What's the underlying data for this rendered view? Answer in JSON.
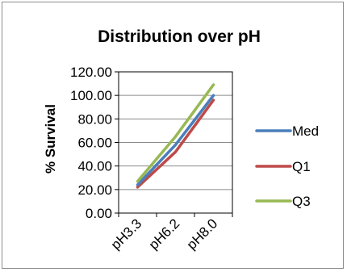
{
  "chart_data": {
    "type": "line",
    "title": "Distribution over pH",
    "xlabel": "",
    "ylabel": "% Survival",
    "categories": [
      "pH3.3",
      "pH6.2",
      "pH8.0"
    ],
    "ylim": [
      0,
      120
    ],
    "yticks": [
      "0.00",
      "20.00",
      "40.00",
      "60.00",
      "80.00",
      "100.00",
      "120.00"
    ],
    "grid": true,
    "legend_position": "right",
    "series": [
      {
        "name": "Med",
        "values": [
          24,
          58,
          100
        ],
        "color": "#4a7ebb"
      },
      {
        "name": "Q1",
        "values": [
          22,
          52,
          96
        ],
        "color": "#be4b48"
      },
      {
        "name": "Q3",
        "values": [
          27,
          65,
          109
        ],
        "color": "#98b954"
      }
    ]
  }
}
